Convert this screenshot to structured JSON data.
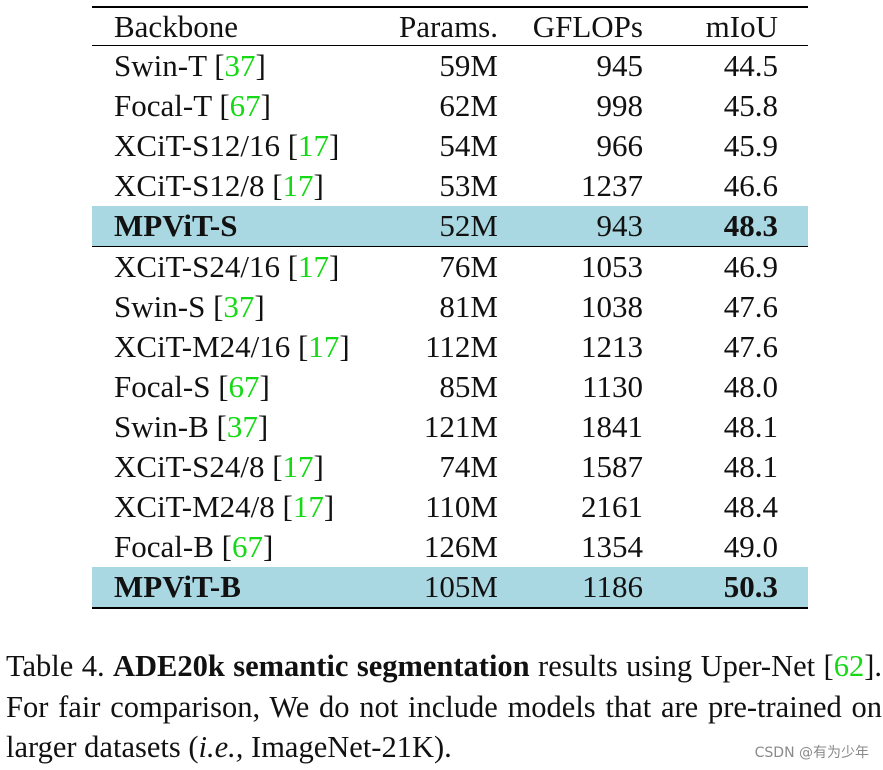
{
  "table": {
    "headers": [
      "Backbone",
      "Params.",
      "GFLOPs",
      "mIoU"
    ],
    "rows": [
      {
        "name": "Swin-T",
        "cite": "37",
        "params": "59M",
        "gflops": "945",
        "miou": "44.5",
        "highlight": false
      },
      {
        "name": "Focal-T",
        "cite": "67",
        "params": "62M",
        "gflops": "998",
        "miou": "45.8",
        "highlight": false
      },
      {
        "name": "XCiT-S12/16",
        "cite": "17",
        "params": "54M",
        "gflops": "966",
        "miou": "45.9",
        "highlight": false
      },
      {
        "name": "XCiT-S12/8",
        "cite": "17",
        "params": "53M",
        "gflops": "1237",
        "miou": "46.6",
        "highlight": false
      },
      {
        "name": "MPViT-S",
        "cite": "",
        "params": "52M",
        "gflops": "943",
        "miou": "48.3",
        "highlight": true
      },
      {
        "name": "XCiT-S24/16",
        "cite": "17",
        "params": "76M",
        "gflops": "1053",
        "miou": "46.9",
        "highlight": false
      },
      {
        "name": "Swin-S",
        "cite": "37",
        "params": "81M",
        "gflops": "1038",
        "miou": "47.6",
        "highlight": false
      },
      {
        "name": "XCiT-M24/16",
        "cite": "17",
        "params": "112M",
        "gflops": "1213",
        "miou": "47.6",
        "highlight": false
      },
      {
        "name": "Focal-S",
        "cite": "67",
        "params": "85M",
        "gflops": "1130",
        "miou": "48.0",
        "highlight": false
      },
      {
        "name": "Swin-B",
        "cite": "37",
        "params": "121M",
        "gflops": "1841",
        "miou": "48.1",
        "highlight": false
      },
      {
        "name": "XCiT-S24/8",
        "cite": "17",
        "params": "74M",
        "gflops": "1587",
        "miou": "48.1",
        "highlight": false
      },
      {
        "name": "XCiT-M24/8",
        "cite": "17",
        "params": "110M",
        "gflops": "2161",
        "miou": "48.4",
        "highlight": false
      },
      {
        "name": "Focal-B",
        "cite": "67",
        "params": "126M",
        "gflops": "1354",
        "miou": "49.0",
        "highlight": false
      },
      {
        "name": "MPViT-B",
        "cite": "",
        "params": "105M",
        "gflops": "1186",
        "miou": "50.3",
        "highlight": true
      }
    ]
  },
  "caption": {
    "label": "Table 4.",
    "bold": "ADE20k semantic segmentation",
    "text1": " results using Uper-Net ",
    "cite": "62",
    "text2": ". For fair comparison, We do not include models that are pre-trained on larger datasets (",
    "italic": "i.e.,",
    "text3": " ImageNet-21K)."
  },
  "colors": {
    "highlight_row": "#a9d8e2",
    "citation": "#15d915"
  },
  "watermark": "CSDN @有为少年"
}
